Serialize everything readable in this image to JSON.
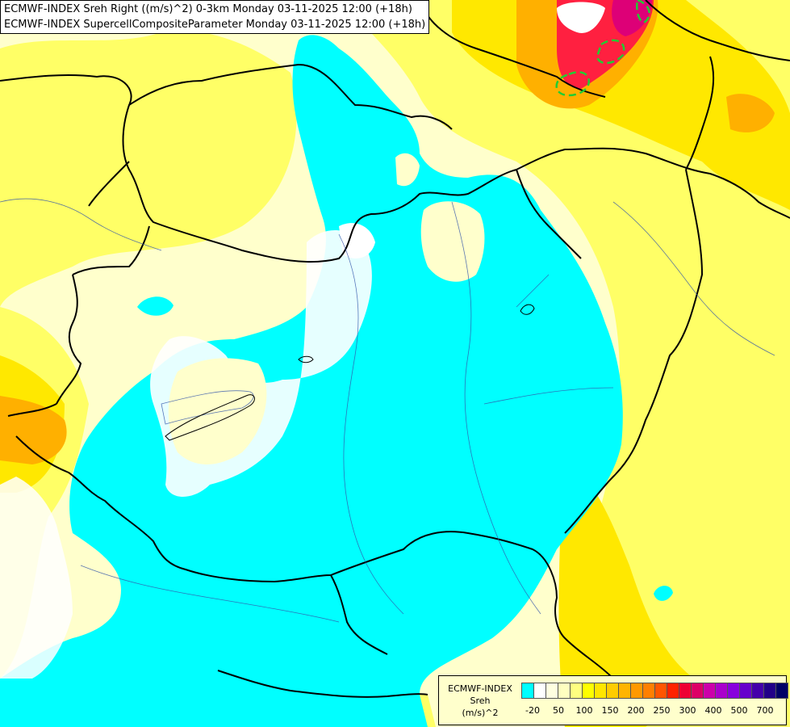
{
  "header": {
    "line1": "ECMWF-INDEX Sreh Right ((m/s)^2) 0-3km Monday 03-11-2025 12:00 (+18h)",
    "line2": "ECMWF-INDEX SupercellCompositeParameter Monday 03-11-2025 12:00 (+18h)"
  },
  "legend": {
    "name_line1": "ECMWF-INDEX",
    "name_line2": "Sreh",
    "name_line3": "(m/s)^2",
    "colors": [
      "#00ffff",
      "#ffffff",
      "#ffffe0",
      "#ffffc0",
      "#ffff80",
      "#ffff00",
      "#ffe600",
      "#ffcc00",
      "#ffb400",
      "#ff9900",
      "#ff7f00",
      "#ff5500",
      "#ff2200",
      "#ee0033",
      "#dd0066",
      "#cc00aa",
      "#aa00cc",
      "#8800dd",
      "#6600cc",
      "#4400aa",
      "#220088",
      "#000066"
    ],
    "ticks": [
      "-20",
      "50",
      "100",
      "150",
      "200",
      "250",
      "300",
      "400",
      "500",
      "700"
    ]
  },
  "colors": {
    "cyan": "#00ffff",
    "white": "#ffffff",
    "pale_yellow": "#ffffcc",
    "yellow": "#ffff66",
    "bright_yellow": "#ffee00",
    "orange": "#ffb000",
    "red": "#ff2040",
    "magenta": "#dd0077",
    "scp_contour": "#22cc33"
  }
}
